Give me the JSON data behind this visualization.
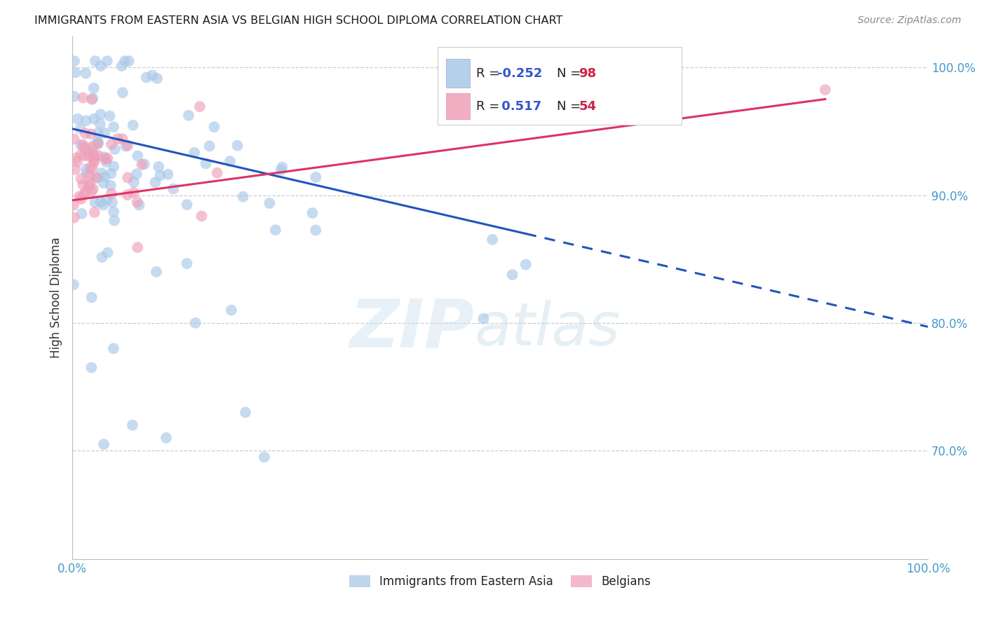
{
  "title": "IMMIGRANTS FROM EASTERN ASIA VS BELGIAN HIGH SCHOOL DIPLOMA CORRELATION CHART",
  "source": "Source: ZipAtlas.com",
  "ylabel": "High School Diploma",
  "legend_blue_label": "Immigrants from Eastern Asia",
  "legend_pink_label": "Belgians",
  "blue_color": "#A8C8E8",
  "pink_color": "#F0A0B8",
  "blue_line_color": "#2255BB",
  "pink_line_color": "#DD3366",
  "watermark_zip": "ZIP",
  "watermark_atlas": "atlas",
  "background_color": "#ffffff",
  "xlim": [
    0.0,
    1.0
  ],
  "ylim": [
    0.615,
    1.025
  ],
  "blue_r": "-0.252",
  "blue_n": "98",
  "pink_r": "0.517",
  "pink_n": "54",
  "r_color": "#3355CC",
  "n_color": "#CC2244",
  "label_color": "#222222",
  "tick_color": "#4499CC",
  "ylabel_color": "#333333",
  "grid_color": "#CCCCCC",
  "source_color": "#888888"
}
